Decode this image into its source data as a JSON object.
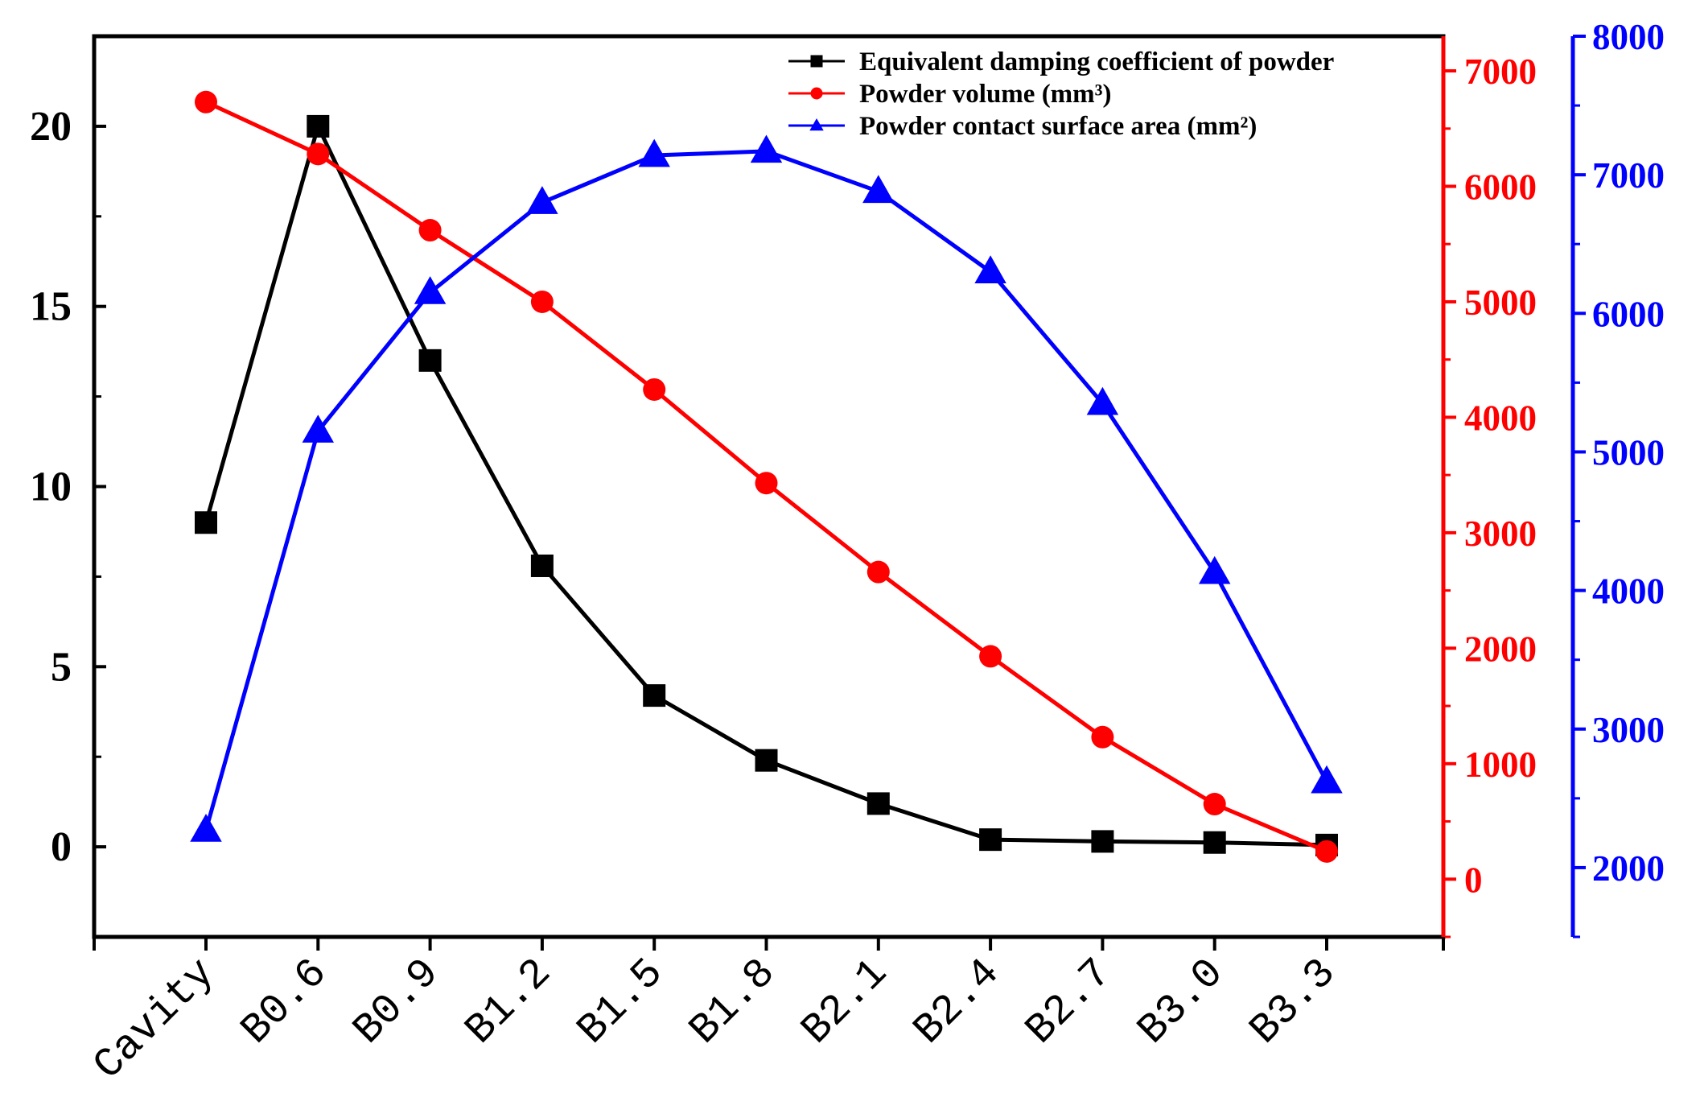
{
  "chart_data": {
    "type": "line",
    "title": "",
    "xlabel": "",
    "categories": [
      "Cavity",
      "B0.6",
      "B0.9",
      "B1.2",
      "B1.5",
      "B1.8",
      "B2.1",
      "B2.4",
      "B2.7",
      "B3.0",
      "B3.3"
    ],
    "axes": {
      "left": {
        "label": "",
        "ylim": [
          -2.5,
          22.5
        ],
        "ticks": [
          0,
          5,
          10,
          15,
          20
        ],
        "tick_labels": [
          "0",
          "5",
          "10",
          "15",
          "20"
        ],
        "color": "#000000"
      },
      "right": {
        "label": "",
        "ylim": [
          -500,
          7300
        ],
        "ticks": [
          0,
          1000,
          2000,
          3000,
          4000,
          5000,
          6000,
          7000
        ],
        "tick_labels": [
          "0",
          "1000",
          "2000",
          "3000",
          "4000",
          "5000",
          "6000",
          "7000"
        ],
        "color": "#ff0000"
      },
      "right2": {
        "label": "",
        "ylim": [
          1500,
          8000
        ],
        "ticks": [
          2000,
          3000,
          4000,
          5000,
          6000,
          7000,
          8000
        ],
        "tick_labels": [
          "2000",
          "3000",
          "4000",
          "5000",
          "6000",
          "7000",
          "8000"
        ],
        "color": "#0000ff"
      }
    },
    "series": [
      {
        "name": "Equivalent damping coefficient of powder",
        "axis": "left",
        "color": "#000000",
        "marker": "square",
        "values": [
          9.0,
          20.0,
          13.5,
          7.8,
          4.2,
          2.4,
          1.2,
          0.2,
          0.15,
          0.12,
          0.05
        ]
      },
      {
        "name": "Powder volume (mm³)",
        "axis": "right",
        "color": "#ff0000",
        "marker": "circle",
        "values": [
          6730,
          6280,
          5620,
          5000,
          4240,
          3430,
          2660,
          1930,
          1230,
          650,
          240
        ]
      },
      {
        "name": "Powder contact surface area (mm²)",
        "axis": "right2",
        "color": "#0000ff",
        "marker": "triangle",
        "values": [
          2270,
          5150,
          6150,
          6800,
          7140,
          7170,
          6880,
          6300,
          5350,
          4130,
          2620
        ]
      }
    ],
    "legend": {
      "position": "top-right"
    },
    "grid": false
  }
}
